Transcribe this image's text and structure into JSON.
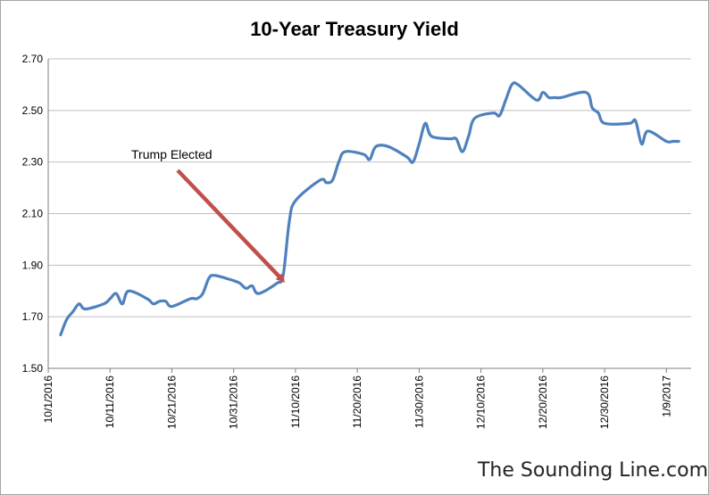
{
  "chart_data": {
    "type": "line",
    "title": "10-Year Treasury Yield",
    "xlabel": "",
    "ylabel": "",
    "ylim": [
      1.5,
      2.7
    ],
    "y_ticks": [
      "1.50",
      "1.70",
      "1.90",
      "2.10",
      "2.30",
      "2.50",
      "2.70"
    ],
    "x_ticks": [
      "10/1/2016",
      "10/11/2016",
      "10/21/2016",
      "10/31/2016",
      "11/10/2016",
      "11/20/2016",
      "11/30/2016",
      "12/10/2016",
      "12/20/2016",
      "12/30/2016",
      "1/9/2017"
    ],
    "x_range": [
      "2016-10-01",
      "2017-01-13"
    ],
    "grid": true,
    "legend": "none",
    "series": [
      {
        "color": "#4f81bd",
        "points": [
          [
            "2016-10-03",
            1.63
          ],
          [
            "2016-10-04",
            1.69
          ],
          [
            "2016-10-05",
            1.72
          ],
          [
            "2016-10-06",
            1.75
          ],
          [
            "2016-10-07",
            1.73
          ],
          [
            "2016-10-10",
            1.75
          ],
          [
            "2016-10-11",
            1.77
          ],
          [
            "2016-10-12",
            1.79
          ],
          [
            "2016-10-13",
            1.75
          ],
          [
            "2016-10-14",
            1.8
          ],
          [
            "2016-10-17",
            1.77
          ],
          [
            "2016-10-18",
            1.75
          ],
          [
            "2016-10-19",
            1.76
          ],
          [
            "2016-10-20",
            1.76
          ],
          [
            "2016-10-21",
            1.74
          ],
          [
            "2016-10-24",
            1.77
          ],
          [
            "2016-10-25",
            1.77
          ],
          [
            "2016-10-26",
            1.79
          ],
          [
            "2016-10-27",
            1.85
          ],
          [
            "2016-10-28",
            1.86
          ],
          [
            "2016-10-31",
            1.84
          ],
          [
            "2016-11-01",
            1.83
          ],
          [
            "2016-11-02",
            1.81
          ],
          [
            "2016-11-03",
            1.82
          ],
          [
            "2016-11-04",
            1.79
          ],
          [
            "2016-11-07",
            1.83
          ],
          [
            "2016-11-08",
            1.86
          ],
          [
            "2016-11-09",
            2.07
          ],
          [
            "2016-11-10",
            2.15
          ],
          [
            "2016-11-14",
            2.23
          ],
          [
            "2016-11-15",
            2.22
          ],
          [
            "2016-11-16",
            2.23
          ],
          [
            "2016-11-17",
            2.3
          ],
          [
            "2016-11-18",
            2.34
          ],
          [
            "2016-11-21",
            2.33
          ],
          [
            "2016-11-22",
            2.31
          ],
          [
            "2016-11-23",
            2.36
          ],
          [
            "2016-11-25",
            2.36
          ],
          [
            "2016-11-28",
            2.32
          ],
          [
            "2016-11-29",
            2.3
          ],
          [
            "2016-11-30",
            2.37
          ],
          [
            "2016-12-01",
            2.45
          ],
          [
            "2016-12-02",
            2.4
          ],
          [
            "2016-12-05",
            2.39
          ],
          [
            "2016-12-06",
            2.39
          ],
          [
            "2016-12-07",
            2.34
          ],
          [
            "2016-12-08",
            2.4
          ],
          [
            "2016-12-09",
            2.47
          ],
          [
            "2016-12-12",
            2.49
          ],
          [
            "2016-12-13",
            2.48
          ],
          [
            "2016-12-14",
            2.54
          ],
          [
            "2016-12-15",
            2.6
          ],
          [
            "2016-12-16",
            2.6
          ],
          [
            "2016-12-19",
            2.54
          ],
          [
            "2016-12-20",
            2.57
          ],
          [
            "2016-12-21",
            2.55
          ],
          [
            "2016-12-22",
            2.55
          ],
          [
            "2016-12-23",
            2.55
          ],
          [
            "2016-12-27",
            2.57
          ],
          [
            "2016-12-28",
            2.51
          ],
          [
            "2016-12-29",
            2.49
          ],
          [
            "2016-12-30",
            2.45
          ],
          [
            "2017-01-03",
            2.45
          ],
          [
            "2017-01-04",
            2.46
          ],
          [
            "2017-01-05",
            2.37
          ],
          [
            "2017-01-06",
            2.42
          ],
          [
            "2017-01-09",
            2.38
          ],
          [
            "2017-01-10",
            2.38
          ],
          [
            "2017-01-11",
            2.38
          ]
        ]
      }
    ],
    "annotations": [
      {
        "text": "Trump Elected",
        "arrow_to": [
          "2016-11-08",
          1.84
        ],
        "arrow_color": "#c0504d"
      }
    ],
    "watermark": "The Sounding Line.com"
  }
}
